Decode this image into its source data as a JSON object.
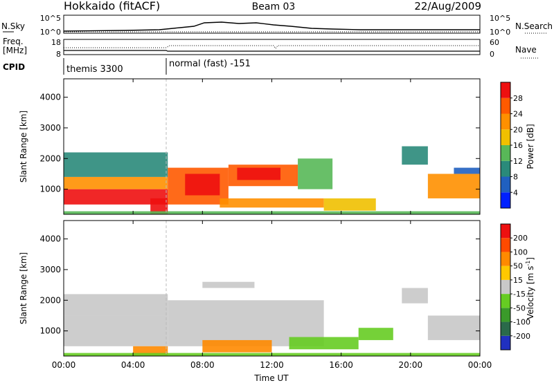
{
  "header": {
    "radar": "Hokkaido (fitACF)",
    "beam": "Beam 03",
    "date": "22/Aug/2009"
  },
  "summary_panels": {
    "nsky": {
      "label": "N.Sky",
      "ticks": [
        "10^5",
        "10^0"
      ]
    },
    "nsearch": {
      "label": "N.Search",
      "ticks": [
        "10^5",
        "10^0"
      ]
    },
    "freq": {
      "label_line1": "Freq.",
      "label_line2": "[MHz]",
      "ticks": [
        "18",
        "8"
      ]
    },
    "nave": {
      "label": "Nave",
      "ticks": [
        "60",
        "0"
      ]
    },
    "cpid": {
      "label": "CPID",
      "segments": [
        {
          "name": "themis 3300",
          "start_hour": 0.0
        },
        {
          "name": "normal (fast) -151",
          "start_hour": 6.0
        }
      ]
    }
  },
  "chart_data": [
    {
      "type": "heatmap",
      "title": "",
      "quantity": "Power",
      "ylabel": "Slant Range [km]",
      "xlabel": "",
      "x_ticks": [
        "00:00",
        "04:00",
        "08:00",
        "12:00",
        "16:00",
        "20:00",
        "00:00"
      ],
      "y_ticks": [
        "1000",
        "2000",
        "3000",
        "4000"
      ],
      "ylim": [
        180,
        4600
      ],
      "colorbar": {
        "label": "Power [dB]",
        "ticks": [
          "4",
          "8",
          "12",
          "16",
          "20",
          "24",
          "28"
        ],
        "colors": [
          "#0020ff",
          "#2060c0",
          "#2a8a7a",
          "#58b858",
          "#f0c000",
          "#ff9000",
          "#ff5a00",
          "#ee1010"
        ]
      },
      "regions": [
        {
          "t0": 0.0,
          "t1": 6.0,
          "r0": 500,
          "r1": 1000,
          "level": 7
        },
        {
          "t0": 0.0,
          "t1": 6.0,
          "r0": 1000,
          "r1": 1400,
          "level": 5
        },
        {
          "t0": 0.0,
          "t1": 6.0,
          "r0": 1400,
          "r1": 2200,
          "level": 2
        },
        {
          "t0": 5.0,
          "t1": 6.0,
          "r0": 180,
          "r1": 700,
          "level": 7
        },
        {
          "t0": 6.0,
          "t1": 9.5,
          "r0": 500,
          "r1": 1700,
          "level": 6
        },
        {
          "t0": 7.0,
          "t1": 9.0,
          "r0": 800,
          "r1": 1500,
          "level": 7
        },
        {
          "t0": 9.5,
          "t1": 13.5,
          "r0": 1100,
          "r1": 1800,
          "level": 6
        },
        {
          "t0": 10.0,
          "t1": 12.5,
          "r0": 1300,
          "r1": 1700,
          "level": 7
        },
        {
          "t0": 9.0,
          "t1": 15.0,
          "r0": 400,
          "r1": 700,
          "level": 5
        },
        {
          "t0": 13.5,
          "t1": 15.5,
          "r0": 1000,
          "r1": 2000,
          "level": 3
        },
        {
          "t0": 15.0,
          "t1": 18.0,
          "r0": 300,
          "r1": 700,
          "level": 4
        },
        {
          "t0": 19.5,
          "t1": 21.0,
          "r0": 1800,
          "r1": 2400,
          "level": 2
        },
        {
          "t0": 21.0,
          "t1": 24.0,
          "r0": 700,
          "r1": 1500,
          "level": 5
        },
        {
          "t0": 22.5,
          "t1": 24.0,
          "r0": 1500,
          "r1": 1700,
          "level": 1
        },
        {
          "t0": 0.0,
          "t1": 24.0,
          "r0": 180,
          "r1": 280,
          "level": 3
        }
      ]
    },
    {
      "type": "heatmap",
      "title": "",
      "quantity": "Velocity",
      "ylabel": "Slant Range [km]",
      "xlabel": "Time UT",
      "x_ticks": [
        "00:00",
        "04:00",
        "08:00",
        "12:00",
        "16:00",
        "20:00",
        "00:00"
      ],
      "y_ticks": [
        "1000",
        "2000",
        "3000",
        "4000"
      ],
      "ylim": [
        180,
        4600
      ],
      "colorbar": {
        "label": "Velocity [m s",
        "label_sup": "-1",
        "label_end": "]",
        "ticks": [
          "200",
          "100",
          "50",
          "15",
          "-15",
          "-50",
          "-100",
          "-200"
        ],
        "colors": [
          "#2030c0",
          "#2a6a4a",
          "#3a9a2a",
          "#66cc22",
          "#c8c8c8",
          "#ffc800",
          "#ff8a00",
          "#ff4a00",
          "#ee1010"
        ]
      },
      "regions": [
        {
          "t0": 0.0,
          "t1": 6.0,
          "r0": 500,
          "r1": 1500,
          "level": 4
        },
        {
          "t0": 0.0,
          "t1": 6.0,
          "r0": 1500,
          "r1": 2200,
          "level": 4
        },
        {
          "t0": 4.0,
          "t1": 6.0,
          "r0": 180,
          "r1": 500,
          "level": 6
        },
        {
          "t0": 6.0,
          "t1": 15.0,
          "r0": 500,
          "r1": 2000,
          "level": 4
        },
        {
          "t0": 8.0,
          "t1": 12.0,
          "r0": 300,
          "r1": 700,
          "level": 6
        },
        {
          "t0": 8.0,
          "t1": 11.0,
          "r0": 2400,
          "r1": 2600,
          "level": 4
        },
        {
          "t0": 13.0,
          "t1": 17.0,
          "r0": 400,
          "r1": 800,
          "level": 3
        },
        {
          "t0": 17.0,
          "t1": 19.0,
          "r0": 700,
          "r1": 1100,
          "level": 3
        },
        {
          "t0": 19.5,
          "t1": 21.0,
          "r0": 1900,
          "r1": 2400,
          "level": 4
        },
        {
          "t0": 21.0,
          "t1": 24.0,
          "r0": 700,
          "r1": 1500,
          "level": 4
        },
        {
          "t0": 0.0,
          "t1": 24.0,
          "r0": 180,
          "r1": 280,
          "level": 3
        }
      ]
    }
  ]
}
